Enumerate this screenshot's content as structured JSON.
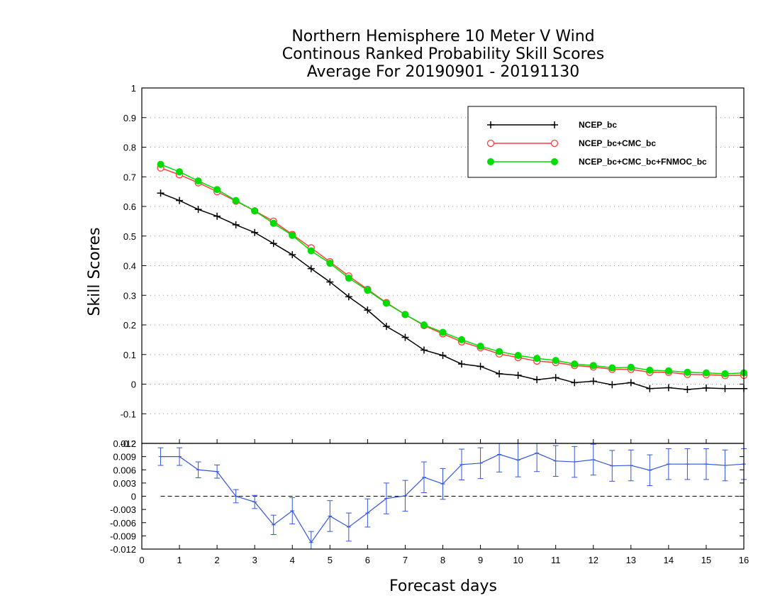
{
  "chart_data": {
    "type": "line",
    "title": [
      "Northern Hemisphere 10 Meter V Wind",
      "Continous Ranked Probability Skill Scores",
      "Average For 20190901 - 20191130"
    ],
    "xlabel": "Forecast days",
    "ylabel": "Skill Scores",
    "xlim": [
      0,
      16
    ],
    "x_ticks": [
      "0",
      "1",
      "2",
      "3",
      "4",
      "5",
      "6",
      "7",
      "8",
      "9",
      "10",
      "11",
      "12",
      "13",
      "14",
      "15",
      "16"
    ],
    "upper": {
      "ylim": [
        -0.2,
        1
      ],
      "y_ticks": [
        "-0.2",
        "-0.1",
        "0",
        "0.1",
        "0.2",
        "0.3",
        "0.4",
        "0.5",
        "0.6",
        "0.7",
        "0.8",
        "0.9",
        "1"
      ],
      "grid": true,
      "legend": "top-right",
      "x": [
        0.5,
        1,
        1.5,
        2,
        2.5,
        3,
        3.5,
        4,
        4.5,
        5,
        5.5,
        6,
        6.5,
        7,
        7.5,
        8,
        8.5,
        9,
        9.5,
        10,
        10.5,
        11,
        11.5,
        12,
        12.5,
        13,
        13.5,
        14,
        14.5,
        15,
        15.5,
        16
      ],
      "series": [
        {
          "name": "NCEP_bc",
          "color": "#000000",
          "marker": "plus",
          "values": [
            0.645,
            0.62,
            0.59,
            0.567,
            0.538,
            0.512,
            0.475,
            0.437,
            0.39,
            0.345,
            0.295,
            0.25,
            0.195,
            0.158,
            0.115,
            0.097,
            0.068,
            0.06,
            0.035,
            0.03,
            0.015,
            0.022,
            0.005,
            0.01,
            -0.002,
            0.005,
            -0.015,
            -0.012,
            -0.018,
            -0.013,
            -0.015,
            -0.015
          ]
        },
        {
          "name": "NCEP_bc+CMC_bc",
          "color": "#ff3b3b",
          "marker": "open-circle",
          "values": [
            0.73,
            0.707,
            0.68,
            0.65,
            0.618,
            0.585,
            0.55,
            0.505,
            0.46,
            0.413,
            0.365,
            0.32,
            0.275,
            0.235,
            0.198,
            0.17,
            0.143,
            0.123,
            0.102,
            0.09,
            0.078,
            0.073,
            0.063,
            0.058,
            0.05,
            0.05,
            0.04,
            0.04,
            0.033,
            0.032,
            0.029,
            0.03
          ]
        },
        {
          "name": "NCEP_bc+CMC_bc+FNMOC_bc",
          "color": "#00dd00",
          "marker": "filled-circle",
          "values": [
            0.742,
            0.717,
            0.686,
            0.657,
            0.62,
            0.585,
            0.543,
            0.502,
            0.45,
            0.408,
            0.358,
            0.317,
            0.273,
            0.235,
            0.2,
            0.175,
            0.15,
            0.128,
            0.11,
            0.097,
            0.087,
            0.08,
            0.068,
            0.063,
            0.055,
            0.057,
            0.047,
            0.045,
            0.04,
            0.038,
            0.035,
            0.038
          ]
        }
      ]
    },
    "lower": {
      "ylim": [
        -0.012,
        0.012
      ],
      "y_ticks": [
        "-0.012",
        "-0.009",
        "-0.006",
        "-0.003",
        "0",
        "0.003",
        "0.006",
        "0.009",
        "0.012"
      ],
      "zero_line": "dashed",
      "series": [
        {
          "color": "#3355dd",
          "marker": "errorbar",
          "x": [
            0.5,
            1,
            1.5,
            2,
            2.5,
            3,
            3.5,
            4,
            4.5,
            5,
            5.5,
            6,
            6.5,
            7,
            7.5,
            8,
            8.5,
            9,
            9.5,
            10,
            10.5,
            11,
            11.5,
            12,
            12.5,
            13,
            13.5,
            14,
            14.5,
            15,
            15.5,
            16
          ],
          "values": [
            0.009,
            0.009,
            0.006,
            0.0056,
            0.0,
            -0.0013,
            -0.0065,
            -0.0033,
            -0.0105,
            -0.0045,
            -0.007,
            -0.0038,
            -0.0005,
            0.0001,
            0.0043,
            0.0028,
            0.0072,
            0.0075,
            0.0095,
            0.0082,
            0.0098,
            0.008,
            0.0078,
            0.0083,
            0.0069,
            0.007,
            0.0059,
            0.0073,
            0.0073,
            0.0073,
            0.007,
            0.0073
          ],
          "err": [
            0.002,
            0.002,
            0.0018,
            0.0015,
            0.0015,
            0.0015,
            0.0022,
            0.003,
            0.0025,
            0.0035,
            0.0032,
            0.0032,
            0.0035,
            0.0035,
            0.0035,
            0.0035,
            0.0035,
            0.0035,
            0.004,
            0.0038,
            0.0042,
            0.0035,
            0.0035,
            0.0035,
            0.0035,
            0.0035,
            0.0035,
            0.0035,
            0.0035,
            0.0035,
            0.0035,
            0.0035
          ]
        }
      ]
    }
  }
}
